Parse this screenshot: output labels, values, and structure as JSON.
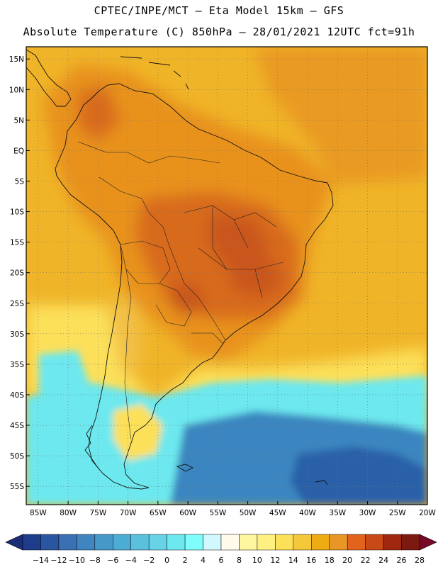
{
  "title": {
    "line1": "CPTEC/INPE/MCT –  Eta Model 15km – GFS",
    "line2": "Absolute Temperature (C) 850hPa – 28/01/2021 12UTC fct=91h"
  },
  "axes": {
    "lat_labels": [
      "15N",
      "10N",
      "5N",
      "EQ",
      "5S",
      "10S",
      "15S",
      "20S",
      "25S",
      "30S",
      "35S",
      "40S",
      "45S",
      "50S",
      "55S"
    ],
    "lat_values": [
      15,
      10,
      5,
      0,
      -5,
      -10,
      -15,
      -20,
      -25,
      -30,
      -35,
      -40,
      -45,
      -50,
      -55
    ],
    "lon_labels": [
      "85W",
      "80W",
      "75W",
      "70W",
      "65W",
      "60W",
      "55W",
      "50W",
      "45W",
      "40W",
      "35W",
      "30W",
      "25W",
      "20W"
    ],
    "lon_values": [
      -85,
      -80,
      -75,
      -70,
      -65,
      -60,
      -55,
      -50,
      -45,
      -40,
      -35,
      -30,
      -25,
      -20
    ],
    "lat_range": [
      -58,
      17
    ],
    "lon_range": [
      -87,
      -20
    ]
  },
  "colorbar": {
    "labels": [
      "-14",
      "-12",
      "-10",
      "-8",
      "-6",
      "-4",
      "-2",
      "0",
      "2",
      "4",
      "6",
      "8",
      "10",
      "12",
      "14",
      "16",
      "18",
      "20",
      "22",
      "24",
      "26",
      "28"
    ],
    "colors": [
      "#1e3c8c",
      "#2a55a0",
      "#3a70b4",
      "#3f86c0",
      "#4698c8",
      "#4dacd4",
      "#5ac0dc",
      "#67d3e6",
      "#6de8ee",
      "#7ffcfc",
      "#d2f8ff",
      "#fffaea",
      "#fff6a0",
      "#fff082",
      "#fce05a",
      "#f5c83a",
      "#eeac14",
      "#e89626",
      "#e2641c",
      "#c84816",
      "#a02810",
      "#7c1a12"
    ],
    "under_color": "#1a2e78",
    "over_color": "#780a28"
  },
  "regions": {
    "ocean_north": "#f0b428",
    "atlantic_warm": "#e99a20",
    "continent": "#e8921e",
    "brazil_core": "#d86a1e",
    "cerrado_hot": "#c9561c",
    "andes_cool": "#f2c046",
    "south_gradient": "#fce05a",
    "southern_ocean": "#6de8ee",
    "cold_core": "#3a86c0",
    "deep_cold": "#2a60a8"
  }
}
